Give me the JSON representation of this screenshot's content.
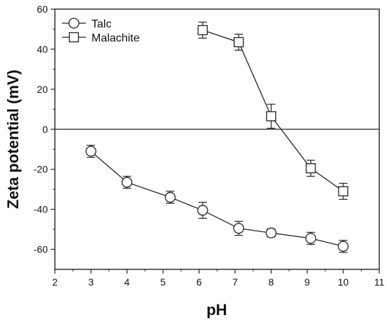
{
  "chart_data": {
    "type": "line",
    "xlabel": "pH",
    "ylabel": "Zeta potential (mV)",
    "xlim": [
      2,
      11
    ],
    "ylim": [
      -70,
      60
    ],
    "xticks": [
      2,
      3,
      4,
      5,
      6,
      7,
      8,
      9,
      10,
      11
    ],
    "yticks": [
      -60,
      -40,
      -20,
      0,
      20,
      40,
      60
    ],
    "zero_line": 0,
    "grid": false,
    "legend_position": "top-left",
    "series": [
      {
        "name": "Talc",
        "marker": "circle",
        "x": [
          3.0,
          4.0,
          5.2,
          6.1,
          7.1,
          8.0,
          9.1,
          10.0
        ],
        "y": [
          -11,
          -26.5,
          -34,
          -40.5,
          -49.5,
          -51.8,
          -54.5,
          -58.5
        ],
        "error": [
          3,
          3,
          3,
          4,
          3.5,
          2,
          3,
          3
        ]
      },
      {
        "name": "Malachite",
        "marker": "square",
        "x": [
          6.1,
          7.1,
          8.0,
          9.1,
          10.0
        ],
        "y": [
          49.5,
          43.5,
          6.5,
          -19.5,
          -31
        ],
        "error": [
          4,
          4,
          6,
          4,
          4
        ]
      }
    ],
    "colors": {
      "line": "#222222",
      "marker_fill": "#ffffff"
    }
  }
}
